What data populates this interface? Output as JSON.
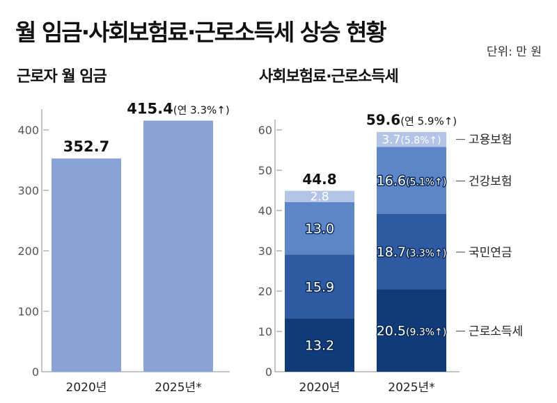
{
  "header": {
    "title": "월 임금·사회보험료·근로소득세 상승 현황",
    "unit": "단위: 만 원"
  },
  "colors": {
    "wage_bar": "#8aa3d6",
    "income_tax": "#0f3b78",
    "national_pension": "#2d5aa2",
    "health_insurance": "#5d86c9",
    "employment_insurance": "#b3c4e7",
    "axis": "#888888"
  },
  "chart_data": [
    {
      "type": "bar",
      "title": "근로자 월 임금",
      "categories": [
        "2020년",
        "2025년*"
      ],
      "values": [
        352.7,
        415.4
      ],
      "value_labels": [
        "352.7",
        "415.4"
      ],
      "value_notes": [
        "",
        "(연 3.3%↑)"
      ],
      "ylim": [
        0,
        400
      ],
      "yticks": [
        "0",
        "100",
        "200",
        "300",
        "400"
      ],
      "grid": false
    },
    {
      "type": "bar",
      "stacked": true,
      "title": "사회보험료·근로소득세",
      "categories": [
        "2020년",
        "2025년*"
      ],
      "totals": [
        44.8,
        59.6
      ],
      "total_labels": [
        "44.8",
        "59.6"
      ],
      "total_notes": [
        "",
        "(연 5.9%↑)"
      ],
      "series": [
        {
          "name": "근로소득세",
          "values": [
            13.2,
            20.5
          ],
          "labels": [
            "13.2",
            "20.5"
          ],
          "notes": [
            "",
            "(9.3%↑)"
          ]
        },
        {
          "name": "국민연금",
          "values": [
            15.9,
            18.7
          ],
          "labels": [
            "15.9",
            "18.7"
          ],
          "notes": [
            "",
            "(3.3%↑)"
          ]
        },
        {
          "name": "건강보험",
          "values": [
            13.0,
            16.6
          ],
          "labels": [
            "13.0",
            "16.6"
          ],
          "notes": [
            "",
            "(5.1%↑)"
          ]
        },
        {
          "name": "고용보험",
          "values": [
            2.8,
            3.7
          ],
          "labels": [
            "2.8",
            "3.7"
          ],
          "notes": [
            "",
            "(5.8%↑)"
          ]
        }
      ],
      "ylim": [
        0,
        60
      ],
      "yticks": [
        "0",
        "10",
        "20",
        "30",
        "40",
        "50",
        "60"
      ],
      "grid": false,
      "legend": "right"
    }
  ]
}
